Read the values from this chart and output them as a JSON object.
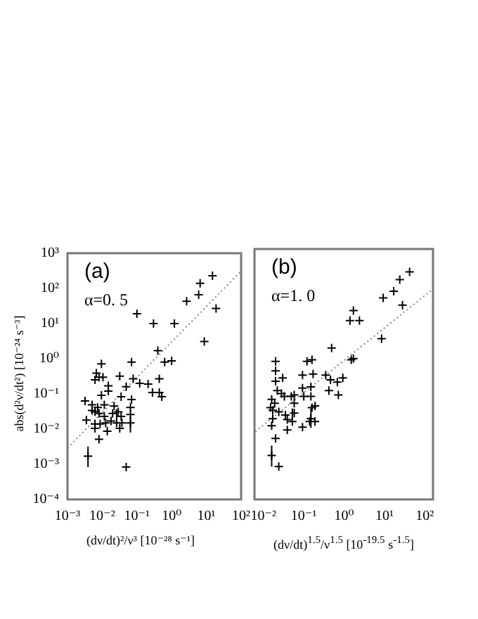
{
  "chart_data": [
    {
      "type": "scatter",
      "xlabel": "(dν/dt)²/ν³ [10⁻²⁸ s⁻¹]",
      "ylabel": "abs(d²ν/dt²) [10⁻²⁴ s⁻³]",
      "annotations": [
        "(a)",
        "α=0. 5"
      ],
      "log": "xy",
      "legend": false,
      "marker": "cross",
      "xlim": [
        0.001,
        100
      ],
      "ylim": [
        0.0001,
        1000
      ],
      "xticks": [
        {
          "value": 0.001,
          "label": "10⁻³"
        },
        {
          "value": 0.01,
          "label": "10⁻²"
        },
        {
          "value": 0.1,
          "label": "10⁻¹"
        },
        {
          "value": 1,
          "label": "10⁰"
        },
        {
          "value": 10,
          "label": "10¹"
        },
        {
          "value": 100,
          "label": "10²"
        }
      ],
      "yticks": [
        {
          "value": 0.0001,
          "label": "10⁻⁴"
        },
        {
          "value": 0.001,
          "label": "10⁻³"
        },
        {
          "value": 0.01,
          "label": "10⁻²"
        },
        {
          "value": 0.1,
          "label": "10⁻¹"
        },
        {
          "value": 1,
          "label": "10⁰"
        },
        {
          "value": 10,
          "label": "10¹"
        },
        {
          "value": 100,
          "label": "10²"
        },
        {
          "value": 1000,
          "label": "10³"
        }
      ],
      "series": [
        {
          "type": "scatter",
          "color": "#000000",
          "x": [
            15,
            6.6,
            6,
            2.7,
            19,
            0.1,
            0.3,
            1.2,
            8.7,
            0.4,
            0.0095,
            0.07,
            0.63,
            1,
            0.0068,
            0.0081,
            0.0062,
            0.0105,
            0.032,
            0.078,
            0.12,
            0.21,
            0.44,
            0.44,
            0.015,
            0.049,
            0.0095,
            0.015,
            0.035,
            0.07,
            0.28,
            0.52,
            0.0032,
            0.0051,
            0.0074,
            0.0051,
            0.0062,
            0.0081,
            0.0115,
            0.022,
            0.065,
            0.0115,
            0.029,
            0.02,
            0.035,
            0.065,
            0.0035,
            0.0062,
            0.0087,
            0.0126,
            0.018,
            0.026,
            0.037,
            0.065,
            0.0062,
            0.014,
            0.032,
            0.0081,
            0.0039,
            0.049
          ],
          "values": [
            230,
            140,
            66,
            43,
            27,
            19,
            10,
            10,
            3.1,
            1.7,
            0.72,
            0.8,
            0.8,
            0.87,
            0.39,
            0.3,
            0.25,
            0.3,
            0.32,
            0.27,
            0.2,
            0.19,
            0.27,
            0.11,
            0.17,
            0.16,
            0.091,
            0.12,
            0.083,
            0.069,
            0.11,
            0.083,
            0.063,
            0.049,
            0.041,
            0.034,
            0.031,
            0.028,
            0.049,
            0.045,
            0.041,
            0.023,
            0.031,
            0.028,
            0.023,
            0.026,
            0.018,
            0.014,
            0.014,
            0.015,
            0.017,
            0.015,
            0.015,
            0.015,
            0.0105,
            0.0087,
            0.0105,
            0.0051,
            0.0017,
            0.00083
          ],
          "errors": [
            null,
            null,
            null,
            null,
            null,
            null,
            null,
            null,
            null,
            null,
            null,
            null,
            null,
            null,
            null,
            null,
            null,
            null,
            null,
            null,
            null,
            null,
            null,
            null,
            null,
            null,
            null,
            null,
            null,
            null,
            null,
            null,
            null,
            null,
            null,
            null,
            null,
            null,
            null,
            null,
            null,
            null,
            null,
            null,
            null,
            null,
            null,
            null,
            null,
            null,
            null,
            [
              0.0126,
              0.037
            ],
            null,
            [
              0.008,
              0.023
            ],
            null,
            null,
            null,
            null,
            [
              0.00083,
              0.0032
            ],
            null
          ]
        },
        {
          "type": "line",
          "color": "#888888",
          "line_style": "dotted",
          "marker": "none",
          "x": [
            0.001,
            100
          ],
          "values": [
            0.0029,
            310
          ]
        }
      ]
    },
    {
      "type": "scatter",
      "xlabel": "(dν/dt)$^{1.5}$/ν$^{1.5}$ [10$^{-19.5}$ s$^{-1.5}$]",
      "annotations": [
        "(b)",
        "α=1. 0"
      ],
      "log": "xy",
      "legend": false,
      "marker": "cross",
      "tick_labels": "x",
      "xlim": [
        0.006,
        160
      ],
      "ylim": [
        0.0001,
        1000
      ],
      "xticks": [
        {
          "value": 0.01,
          "label": "10⁻²"
        },
        {
          "value": 0.1,
          "label": "10⁻¹"
        },
        {
          "value": 1,
          "label": "10⁰"
        },
        {
          "value": 10,
          "label": "10¹"
        },
        {
          "value": 100,
          "label": "10²"
        }
      ],
      "yticks": [
        {
          "value": 0.0001,
          "label": null
        },
        {
          "value": 0.001,
          "label": null
        },
        {
          "value": 0.01,
          "label": null
        },
        {
          "value": 0.1,
          "label": null
        },
        {
          "value": 1,
          "label": null
        },
        {
          "value": 10,
          "label": null
        },
        {
          "value": 100,
          "label": null
        },
        {
          "value": 1000,
          "label": null
        }
      ],
      "series": [
        {
          "type": "scatter",
          "color": "#000000",
          "x": [
            42,
            24,
            17,
            9.3,
            28,
            1.7,
            1.4,
            2.4,
            8.5,
            0.49,
            0.02,
            0.12,
            0.16,
            1.5,
            1.7,
            0.02,
            0.02,
            0.03,
            0.093,
            0.17,
            0.35,
            0.93,
            0.46,
            0.68,
            0.093,
            0.15,
            0.022,
            0.42,
            0.028,
            0.72,
            0.033,
            0.058,
            0.049,
            0.1,
            0.15,
            0.016,
            0.019,
            0.058,
            0.015,
            0.017,
            0.024,
            0.035,
            0.058,
            0.16,
            0.19,
            0.017,
            0.039,
            0.052,
            0.14,
            0.19,
            0.15,
            0.016,
            0.039,
            0.093,
            0.02,
            0.016,
            0.024
          ],
          "values": [
            230,
            140,
            66,
            43,
            27,
            19,
            10,
            10,
            3.1,
            1.7,
            0.72,
            0.72,
            0.8,
            0.8,
            0.87,
            0.39,
            0.2,
            0.25,
            0.3,
            0.32,
            0.3,
            0.25,
            0.22,
            0.19,
            0.13,
            0.14,
            0.11,
            0.11,
            0.091,
            0.083,
            0.076,
            0.083,
            0.076,
            0.076,
            0.076,
            0.063,
            0.049,
            0.049,
            0.037,
            0.031,
            0.028,
            0.023,
            0.026,
            0.037,
            0.041,
            0.018,
            0.017,
            0.015,
            0.015,
            0.015,
            0.018,
            0.0115,
            0.0087,
            0.0105,
            0.0051,
            0.0017,
            0.00083
          ],
          "errors": [
            null,
            null,
            null,
            null,
            null,
            null,
            null,
            null,
            null,
            null,
            null,
            null,
            null,
            null,
            null,
            null,
            null,
            null,
            null,
            null,
            null,
            null,
            null,
            null,
            null,
            null,
            null,
            null,
            null,
            null,
            null,
            null,
            null,
            null,
            null,
            null,
            null,
            null,
            null,
            null,
            null,
            null,
            null,
            null,
            null,
            null,
            null,
            [
              0.014,
              0.035
            ],
            null,
            null,
            [
              0.01,
              0.035
            ],
            null,
            null,
            null,
            null,
            [
              0.00083,
              0.0032
            ],
            null
          ]
        },
        {
          "type": "line",
          "color": "#888888",
          "line_style": "dotted",
          "marker": "none",
          "x": [
            0.0063,
            150
          ],
          "values": [
            0.0079,
            72
          ]
        }
      ]
    }
  ]
}
